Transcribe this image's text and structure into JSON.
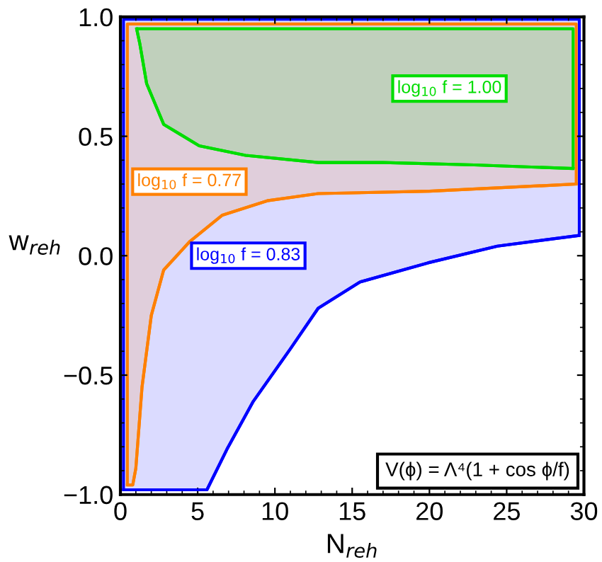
{
  "chart_data": {
    "type": "line",
    "xlabel": "N$_{reh}$",
    "ylabel": "w$_{reh}$",
    "xlim": [
      0,
      30
    ],
    "ylim": [
      -1.0,
      1.0
    ],
    "xticks": [
      0,
      5,
      10,
      15,
      20,
      25,
      30
    ],
    "yticks": [
      {
        "value": -1.0,
        "label": "−1.0"
      },
      {
        "value": -0.5,
        "label": "−0.5"
      },
      {
        "value": 0.0,
        "label": "0.0"
      },
      {
        "value": 0.5,
        "label": "0.5"
      },
      {
        "value": 1.0,
        "label": "1.0"
      }
    ],
    "grid": false,
    "series": [
      {
        "color": "#0000ff",
        "x": [
          0.2,
          5.6,
          6.9,
          8.6,
          11.0,
          12.8,
          15.5,
          19.9,
          24.4,
          29.7
        ],
        "values": [
          -0.98,
          -0.98,
          -0.81,
          -0.61,
          -0.39,
          -0.22,
          -0.11,
          -0.03,
          0.04,
          0.085
        ],
        "lower": [
          -0.98,
          -0.98,
          -0.81,
          -0.61,
          -0.39,
          -0.22,
          -0.11,
          -0.03,
          0.04,
          0.085
        ],
        "upper": [
          0.99,
          0.99,
          0.99,
          0.99,
          0.99,
          0.99,
          0.99,
          0.99,
          0.99,
          0.99
        ]
      },
      {
        "color": "#ff8000",
        "x": [
          0.45,
          0.8,
          1.0,
          1.4,
          2.0,
          2.8,
          4.5,
          6.6,
          9.5,
          12.8,
          20.0,
          29.5
        ],
        "values": [
          -0.96,
          -0.96,
          -0.89,
          -0.55,
          -0.25,
          -0.06,
          0.06,
          0.17,
          0.23,
          0.26,
          0.27,
          0.3
        ],
        "lower": [
          -0.96,
          -0.96,
          -0.89,
          -0.55,
          -0.25,
          -0.06,
          0.06,
          0.17,
          0.23,
          0.26,
          0.27,
          0.3
        ],
        "upper": [
          0.97,
          0.97,
          0.97,
          0.97,
          0.97,
          0.97,
          0.97,
          0.97,
          0.97,
          0.97,
          0.97,
          0.97
        ]
      },
      {
        "color": "#00dd00",
        "x": [
          1.05,
          1.25,
          1.7,
          2.8,
          5.1,
          8.1,
          12.8,
          17.0,
          22.9,
          29.3
        ],
        "values": [
          0.95,
          0.89,
          0.72,
          0.55,
          0.46,
          0.42,
          0.39,
          0.39,
          0.38,
          0.365
        ],
        "lower": [
          0.95,
          0.89,
          0.72,
          0.55,
          0.46,
          0.42,
          0.39,
          0.39,
          0.38,
          0.365
        ],
        "upper": [
          0.95,
          0.95,
          0.95,
          0.95,
          0.95,
          0.95,
          0.95,
          0.95,
          0.95,
          0.95
        ]
      }
    ],
    "annotations": [
      "log$_{10}$ f = 0.83",
      "log$_{10}$ f = 0.77",
      "log$_{10}$ f = 1.00",
      "V(ϕ) = Λ⁴(1 + cos ϕ/f)"
    ]
  }
}
